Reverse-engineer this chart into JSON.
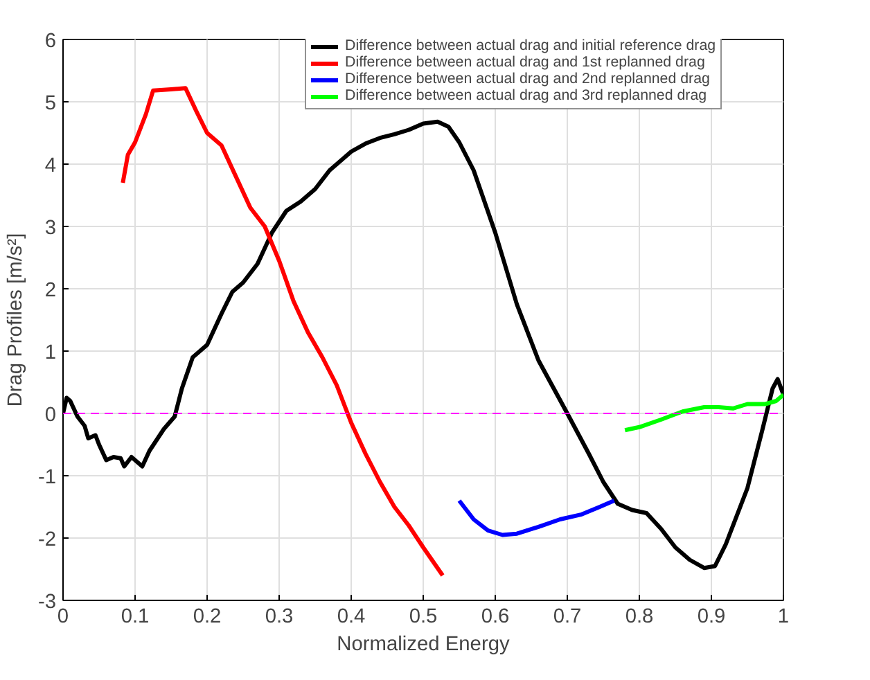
{
  "chart_data": {
    "type": "line",
    "xlabel": "Normalized Energy",
    "ylabel": "Drag Profiles [m/s²]",
    "xlim": [
      0,
      1
    ],
    "ylim": [
      -3,
      6
    ],
    "xticks": [
      0,
      0.1,
      0.2,
      0.3,
      0.4,
      0.5,
      0.6,
      0.7,
      0.8,
      0.9,
      1
    ],
    "yticks": [
      -3,
      -2,
      -1,
      0,
      1,
      2,
      3,
      4,
      5,
      6
    ],
    "grid": true,
    "legend": "top right",
    "marker": "none",
    "line_style": "solid",
    "ref_lines": [
      {
        "axis": "y",
        "value": 0,
        "color": "#ff00ff",
        "line_style": "dashed"
      }
    ],
    "series": [
      {
        "name": "Difference between actual drag and initial reference drag",
        "color": "#000000",
        "x": [
          0,
          0.005,
          0.01,
          0.02,
          0.03,
          0.035,
          0.045,
          0.05,
          0.06,
          0.07,
          0.08,
          0.085,
          0.095,
          0.11,
          0.12,
          0.14,
          0.155,
          0.165,
          0.18,
          0.2,
          0.22,
          0.235,
          0.25,
          0.27,
          0.29,
          0.31,
          0.33,
          0.35,
          0.37,
          0.4,
          0.42,
          0.44,
          0.46,
          0.48,
          0.5,
          0.52,
          0.535,
          0.55,
          0.57,
          0.6,
          0.63,
          0.66,
          0.7,
          0.73,
          0.75,
          0.77,
          0.79,
          0.81,
          0.83,
          0.85,
          0.87,
          0.89,
          0.905,
          0.92,
          0.95,
          0.97,
          0.985,
          0.992,
          1.0
        ],
        "values": [
          0,
          0.25,
          0.2,
          -0.05,
          -0.2,
          -0.4,
          -0.35,
          -0.5,
          -0.75,
          -0.7,
          -0.72,
          -0.85,
          -0.7,
          -0.85,
          -0.6,
          -0.25,
          -0.05,
          0.4,
          0.9,
          1.1,
          1.6,
          1.95,
          2.1,
          2.4,
          2.9,
          3.25,
          3.4,
          3.6,
          3.9,
          4.2,
          4.33,
          4.42,
          4.48,
          4.55,
          4.65,
          4.68,
          4.6,
          4.35,
          3.9,
          2.9,
          1.75,
          0.85,
          0.0,
          -0.65,
          -1.1,
          -1.45,
          -1.55,
          -1.6,
          -1.85,
          -2.15,
          -2.35,
          -2.48,
          -2.45,
          -2.1,
          -1.2,
          -0.3,
          0.4,
          0.55,
          0.3
        ]
      },
      {
        "name": "Difference between actual drag and 1st replanned drag",
        "color": "#ff0000",
        "x": [
          0.083,
          0.09,
          0.1,
          0.115,
          0.125,
          0.15,
          0.17,
          0.185,
          0.2,
          0.22,
          0.24,
          0.26,
          0.28,
          0.3,
          0.32,
          0.34,
          0.36,
          0.38,
          0.4,
          0.42,
          0.44,
          0.46,
          0.48,
          0.5,
          0.527
        ],
        "values": [
          3.7,
          4.15,
          4.35,
          4.8,
          5.18,
          5.2,
          5.22,
          4.85,
          4.5,
          4.3,
          3.8,
          3.3,
          3.0,
          2.45,
          1.8,
          1.3,
          0.9,
          0.45,
          -0.15,
          -0.65,
          -1.1,
          -1.5,
          -1.8,
          -2.15,
          -2.6
        ]
      },
      {
        "name": "Difference between actual drag and 2nd replanned drag",
        "color": "#0000ff",
        "x": [
          0.55,
          0.57,
          0.59,
          0.61,
          0.63,
          0.66,
          0.69,
          0.72,
          0.745,
          0.765
        ],
        "values": [
          -1.4,
          -1.7,
          -1.88,
          -1.95,
          -1.93,
          -1.82,
          -1.7,
          -1.62,
          -1.5,
          -1.4
        ]
      },
      {
        "name": "Difference between actual drag and 3rd replanned drag",
        "color": "#00ff00",
        "x": [
          0.78,
          0.8,
          0.83,
          0.86,
          0.89,
          0.91,
          0.93,
          0.95,
          0.975,
          0.99,
          1.0
        ],
        "values": [
          -0.27,
          -0.22,
          -0.1,
          0.03,
          0.1,
          0.1,
          0.08,
          0.15,
          0.15,
          0.2,
          0.3
        ]
      }
    ]
  }
}
